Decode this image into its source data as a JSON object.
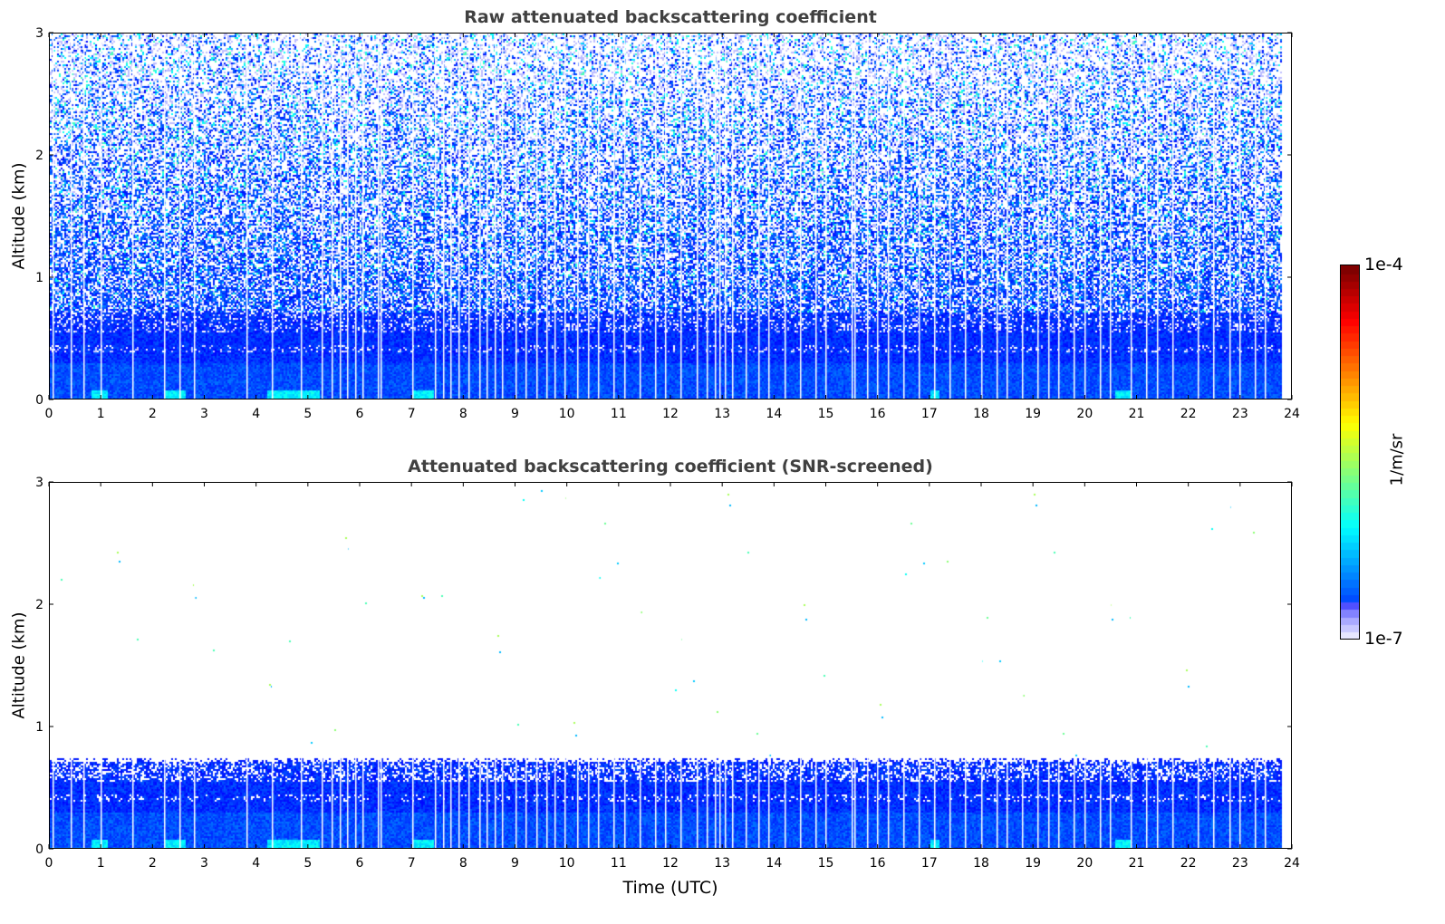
{
  "chart_data": [
    {
      "type": "heatmap",
      "title": "Raw attenuated backscattering coefficient",
      "xlabel": "",
      "ylabel": "Altitude (km)",
      "xlim": [
        0,
        24
      ],
      "ylim": [
        0,
        3
      ],
      "xticks": [
        "0",
        "1",
        "2",
        "3",
        "4",
        "5",
        "6",
        "7",
        "8",
        "9",
        "10",
        "11",
        "12",
        "13",
        "14",
        "15",
        "16",
        "17",
        "18",
        "19",
        "20",
        "21",
        "22",
        "23",
        "24"
      ],
      "yticks": [
        "0",
        "1",
        "2",
        "3"
      ],
      "data_end_time": 23.8,
      "boundary_layer_top_km": 0.72,
      "description_values": {
        "dense_signal_below_km": 0.72,
        "noise_extends_to_km": 3
      }
    },
    {
      "type": "heatmap",
      "title": "Attenuated backscattering coefficient (SNR-screened)",
      "xlabel": "Time (UTC)",
      "ylabel": "Altitude (km)",
      "xlim": [
        0,
        24
      ],
      "ylim": [
        0,
        3
      ],
      "xticks": [
        "0",
        "1",
        "2",
        "3",
        "4",
        "5",
        "6",
        "7",
        "8",
        "9",
        "10",
        "11",
        "12",
        "13",
        "14",
        "15",
        "16",
        "17",
        "18",
        "19",
        "20",
        "21",
        "22",
        "23",
        "24"
      ],
      "yticks": [
        "0",
        "1",
        "2",
        "3"
      ],
      "data_end_time": 23.8,
      "boundary_layer_top_km": 0.72
    }
  ],
  "gap_times": [
    0.05,
    0.4,
    0.65,
    0.98,
    1.6,
    2.2,
    2.5,
    2.78,
    3.8,
    4.3,
    4.85,
    5.25,
    5.45,
    5.6,
    5.75,
    5.9,
    6.05,
    6.35,
    6.4,
    7.0,
    7.45,
    7.6,
    7.75,
    7.9,
    8.1,
    8.3,
    8.45,
    8.6,
    8.75,
    9.0,
    9.2,
    9.4,
    9.6,
    9.75,
    9.95,
    10.2,
    10.4,
    10.6,
    10.9,
    11.1,
    11.4,
    11.7,
    11.9,
    12.2,
    12.5,
    12.7,
    12.85,
    12.95,
    13.05,
    13.2,
    13.45,
    13.7,
    13.9,
    14.2,
    14.5,
    14.8,
    15.0,
    15.5,
    15.55,
    15.8,
    16.0,
    16.2,
    16.5,
    16.8,
    17.1,
    17.4,
    17.7,
    18.0,
    18.3,
    18.5,
    18.8,
    19.1,
    19.3,
    19.5,
    19.8,
    20.0,
    20.3,
    20.5,
    20.9,
    21.2,
    21.4,
    21.7,
    22.2,
    22.5,
    22.8,
    23.0,
    23.3,
    23.5
  ],
  "colorbar": {
    "label": "1/m/sr",
    "min_label": "1e-7",
    "max_label": "1e-4",
    "scale": "log",
    "range": [
      1e-07,
      0.0001
    ],
    "colormap": "jet"
  }
}
